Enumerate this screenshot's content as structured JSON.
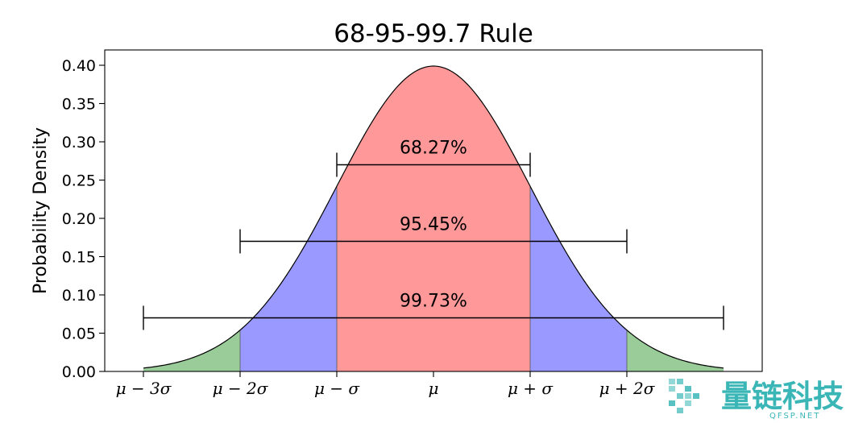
{
  "chart_data": {
    "type": "area",
    "title": "68-95-99.7 Rule",
    "ylabel": "Probability Density",
    "xlabel": "",
    "distribution": {
      "kind": "normal",
      "mean": 0,
      "sd": 1
    },
    "xlim": [
      -3.4,
      3.4
    ],
    "ylim": [
      0.0,
      0.42
    ],
    "yticks": [
      0.0,
      0.05,
      0.1,
      0.15,
      0.2,
      0.25,
      0.3,
      0.35,
      0.4
    ],
    "ytick_labels": [
      "0.00",
      "0.05",
      "0.10",
      "0.15",
      "0.20",
      "0.25",
      "0.30",
      "0.35",
      "0.40"
    ],
    "xticks": [
      -3,
      -2,
      -1,
      0,
      1,
      2
    ],
    "xtick_labels": [
      "μ − 3σ",
      "μ − 2σ",
      "μ − σ",
      "μ",
      "μ + σ",
      "μ + 2σ"
    ],
    "curve_range": [
      -3,
      3
    ],
    "regions": [
      {
        "from": -3,
        "to": -2,
        "color": "#99cc99"
      },
      {
        "from": -2,
        "to": -1,
        "color": "#9999ff"
      },
      {
        "from": -1,
        "to": 1,
        "color": "#ff9999"
      },
      {
        "from": 1,
        "to": 2,
        "color": "#9999ff"
      },
      {
        "from": 2,
        "to": 3,
        "color": "#99cc99"
      }
    ],
    "intervals": [
      {
        "label": "68.27%",
        "from": -1,
        "to": 1,
        "y": 0.27,
        "label_y": 0.285
      },
      {
        "label": "95.45%",
        "from": -2,
        "to": 2,
        "y": 0.17,
        "label_y": 0.185
      },
      {
        "label": "99.73%",
        "from": -3,
        "to": 3,
        "y": 0.07,
        "label_y": 0.085
      }
    ],
    "grid": false,
    "legend": "none"
  },
  "watermark": {
    "text": "量链科技",
    "subtext": "QFSP.NET",
    "color": "#3bb6b6"
  }
}
